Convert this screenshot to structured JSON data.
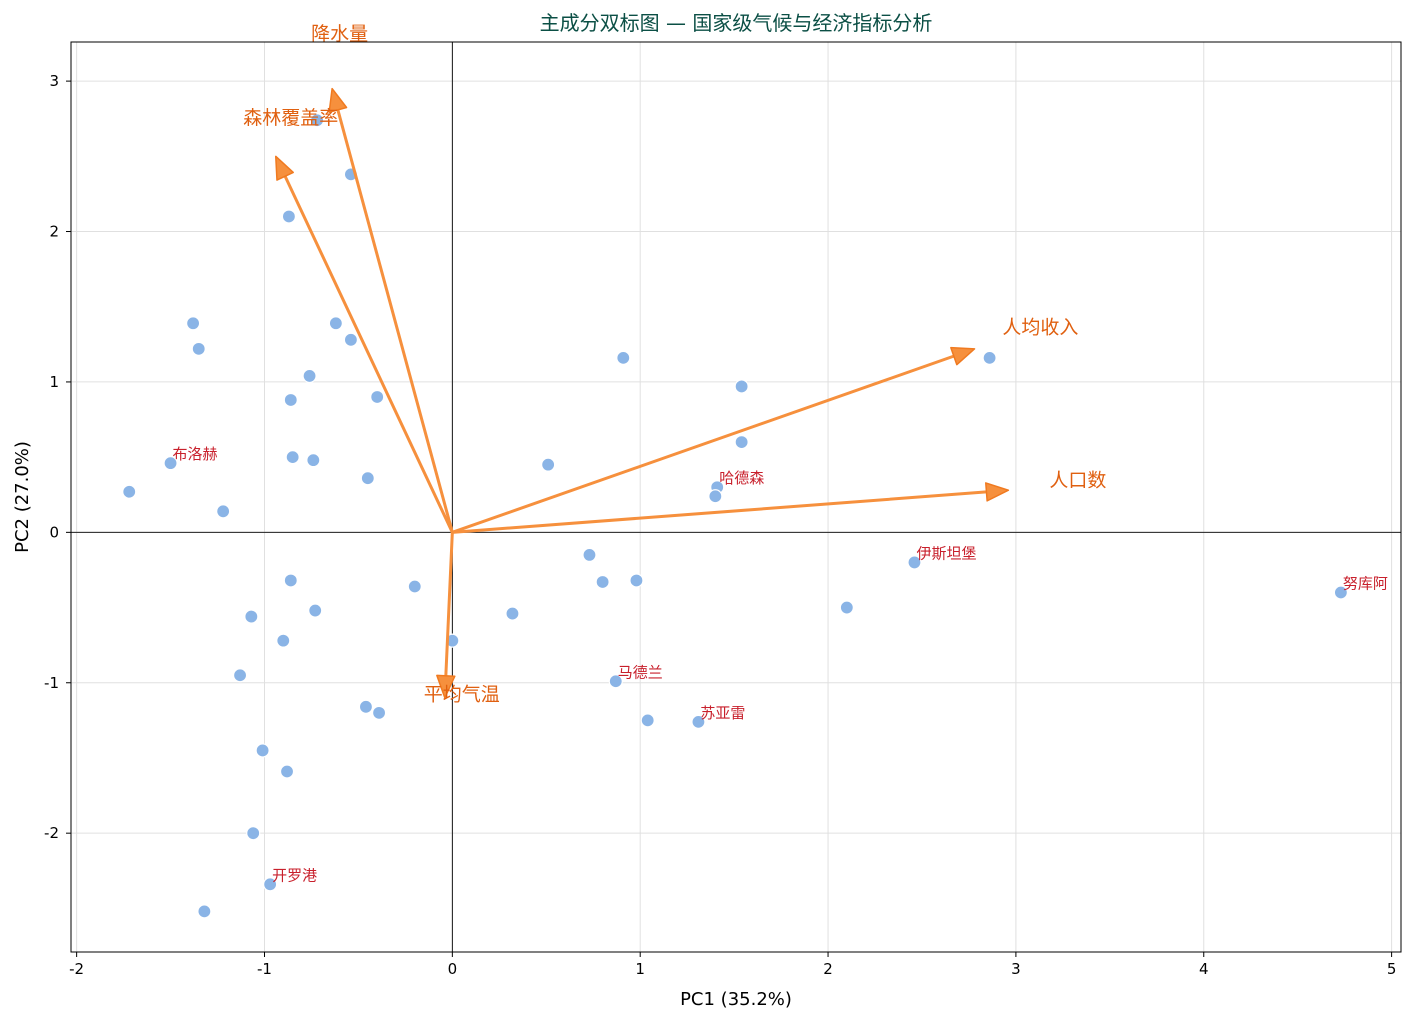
{
  "chart_data": {
    "type": "scatter",
    "title": "主成分双标图 — 国家级气候与经济指标分析",
    "xlabel": "PC1 (35.2%)",
    "ylabel": "PC2 (27.0%)",
    "xlim": [
      -2.03,
      5.05
    ],
    "ylim": [
      -2.79,
      3.26
    ],
    "xticks": [
      -2,
      -1,
      0,
      1,
      2,
      3,
      4,
      5
    ],
    "yticks": [
      -2,
      -1,
      0,
      1,
      2,
      3
    ],
    "grid": true,
    "colors": {
      "points": "#8ab4e6",
      "points_edge": "#ffffff",
      "arrows": "#f6903d",
      "loading_labels": "#e06010",
      "point_labels": "#c8202c",
      "title": "#0b4f45",
      "grid": "#e0e0e0"
    },
    "points": [
      {
        "x": -1.72,
        "y": 0.27
      },
      {
        "x": -1.5,
        "y": 0.46,
        "label": "布洛赫"
      },
      {
        "x": -1.38,
        "y": 1.39
      },
      {
        "x": -1.35,
        "y": 1.22
      },
      {
        "x": -1.22,
        "y": 0.14
      },
      {
        "x": -0.72,
        "y": 2.74
      },
      {
        "x": -0.54,
        "y": 2.38
      },
      {
        "x": -0.87,
        "y": 2.1
      },
      {
        "x": -0.62,
        "y": 1.39
      },
      {
        "x": -0.54,
        "y": 1.28
      },
      {
        "x": -0.76,
        "y": 1.04
      },
      {
        "x": -0.86,
        "y": 0.88
      },
      {
        "x": -0.4,
        "y": 0.9
      },
      {
        "x": -0.85,
        "y": 0.5
      },
      {
        "x": -0.74,
        "y": 0.48
      },
      {
        "x": -0.45,
        "y": 0.36
      },
      {
        "x": -0.2,
        "y": -0.36
      },
      {
        "x": -0.86,
        "y": -0.32
      },
      {
        "x": -0.73,
        "y": -0.52
      },
      {
        "x": -1.07,
        "y": -0.56
      },
      {
        "x": -0.9,
        "y": -0.72
      },
      {
        "x": -1.13,
        "y": -0.95
      },
      {
        "x": -0.46,
        "y": -1.16
      },
      {
        "x": -0.39,
        "y": -1.2
      },
      {
        "x": 0.0,
        "y": -0.72
      },
      {
        "x": -1.01,
        "y": -1.45
      },
      {
        "x": -0.88,
        "y": -1.59
      },
      {
        "x": -1.06,
        "y": -2.0
      },
      {
        "x": -0.97,
        "y": -2.34,
        "label": "开罗港"
      },
      {
        "x": -1.32,
        "y": -2.52
      },
      {
        "x": 0.32,
        "y": -0.54
      },
      {
        "x": 0.51,
        "y": 0.45
      },
      {
        "x": 0.73,
        "y": -0.15
      },
      {
        "x": 0.8,
        "y": -0.33
      },
      {
        "x": 0.98,
        "y": -0.32
      },
      {
        "x": 0.91,
        "y": 1.16
      },
      {
        "x": 0.87,
        "y": -0.99,
        "label": "马德兰"
      },
      {
        "x": 1.04,
        "y": -1.25
      },
      {
        "x": 1.31,
        "y": -1.26,
        "label": "苏亚雷"
      },
      {
        "x": 1.41,
        "y": 0.3,
        "label": "哈德森"
      },
      {
        "x": 1.4,
        "y": 0.24
      },
      {
        "x": 1.54,
        "y": 0.97
      },
      {
        "x": 1.54,
        "y": 0.6
      },
      {
        "x": 2.1,
        "y": -0.5
      },
      {
        "x": 2.46,
        "y": -0.2,
        "label": "伊斯坦堡"
      },
      {
        "x": 2.86,
        "y": 1.16
      },
      {
        "x": 4.73,
        "y": -0.4,
        "label": "努库阿"
      }
    ],
    "loadings": [
      {
        "name": "降水量",
        "x": -0.64,
        "y": 2.95,
        "label_x": -0.6,
        "label_y": 3.32
      },
      {
        "name": "森林覆盖率",
        "x": -0.94,
        "y": 2.5,
        "label_x": -0.86,
        "label_y": 2.76
      },
      {
        "name": "人均收入",
        "x": 2.78,
        "y": 1.22,
        "label_x": 3.13,
        "label_y": 1.37
      },
      {
        "name": "人口数",
        "x": 2.96,
        "y": 0.28,
        "label_x": 3.33,
        "label_y": 0.35
      },
      {
        "name": "平均气温",
        "x": -0.04,
        "y": -1.1,
        "label_x": 0.05,
        "label_y": -1.07
      }
    ]
  }
}
